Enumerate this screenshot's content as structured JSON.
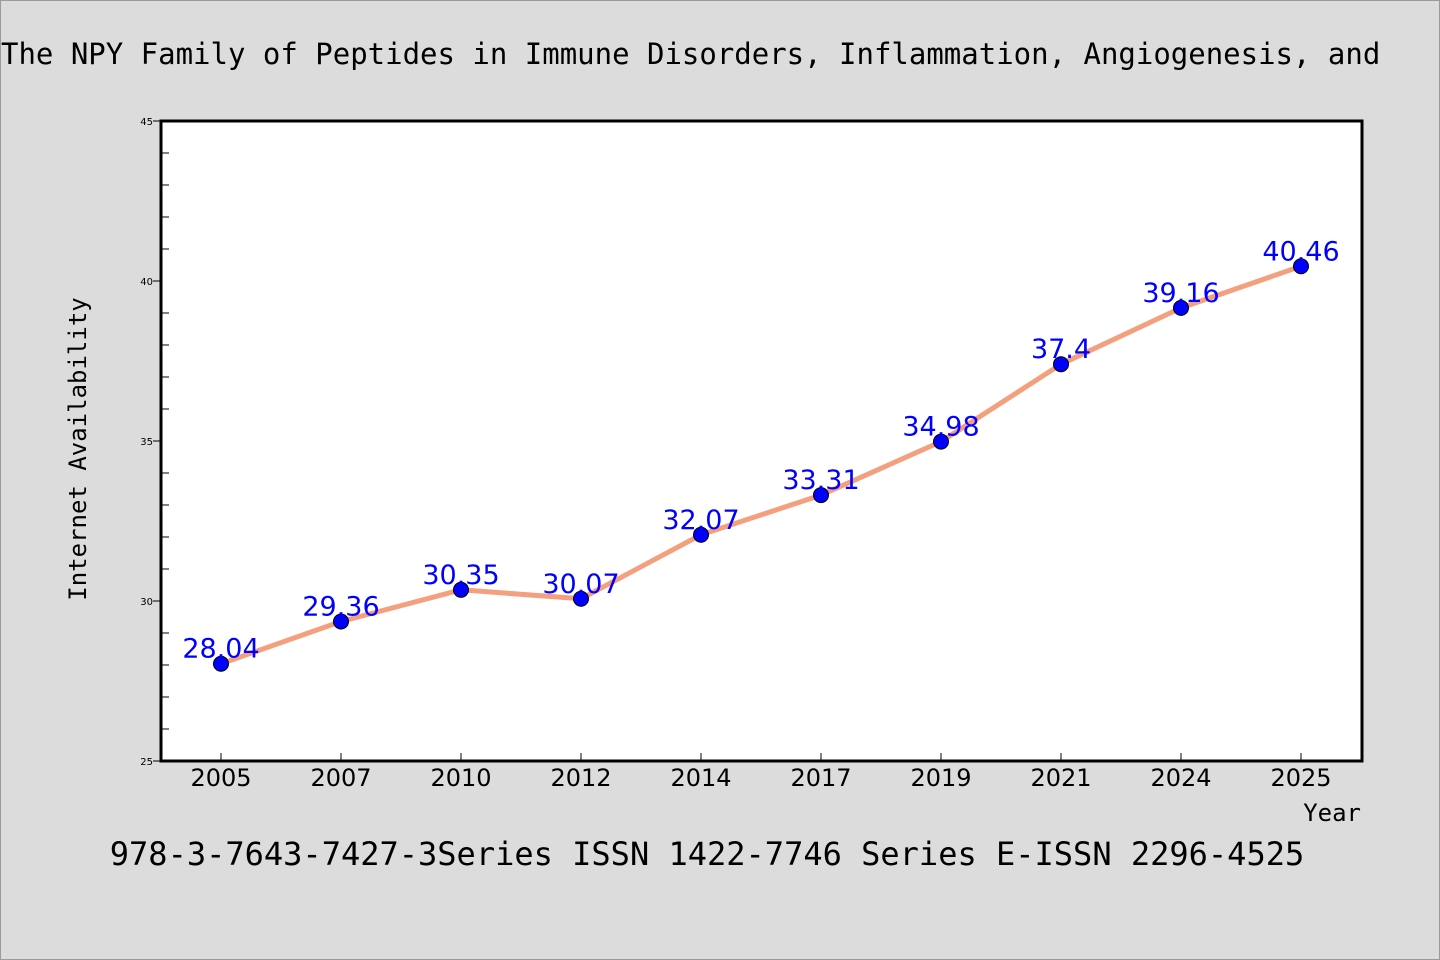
{
  "figure": {
    "background": "#dcdcdc",
    "plot_background": "#ffffff",
    "line_color": "#f4a07e",
    "marker_color": "#0000ff",
    "label_color": "#0000ff"
  },
  "chart_data": {
    "type": "line",
    "title": "The NPY Family of Peptides in Immune Disorders, Inflammation, Angiogenesis, and",
    "footer": "978-3-7643-7427-3Series ISSN 1422-7746 Series E-ISSN 2296-4525",
    "xlabel": "Year",
    "ylabel": "Internet Availability",
    "categories": [
      "2005",
      "2007",
      "2010",
      "2012",
      "2014",
      "2017",
      "2019",
      "2021",
      "2024",
      "2025"
    ],
    "series": [
      {
        "values": [
          28.04,
          29.36,
          30.35,
          30.07,
          32.07,
          33.31,
          34.98,
          37.4,
          39.16,
          40.46
        ],
        "data_labels": [
          "28.04",
          "29.36",
          "30.35",
          "30.07",
          "32.07",
          "33.31",
          "34.98",
          "37.4",
          "39.16",
          "40.46"
        ]
      }
    ],
    "ylim": [
      25,
      45
    ],
    "y_ticks": [
      "25",
      "30",
      "35",
      "40",
      "45"
    ],
    "y_minor_step": 1,
    "grid": false,
    "legend": "none"
  }
}
